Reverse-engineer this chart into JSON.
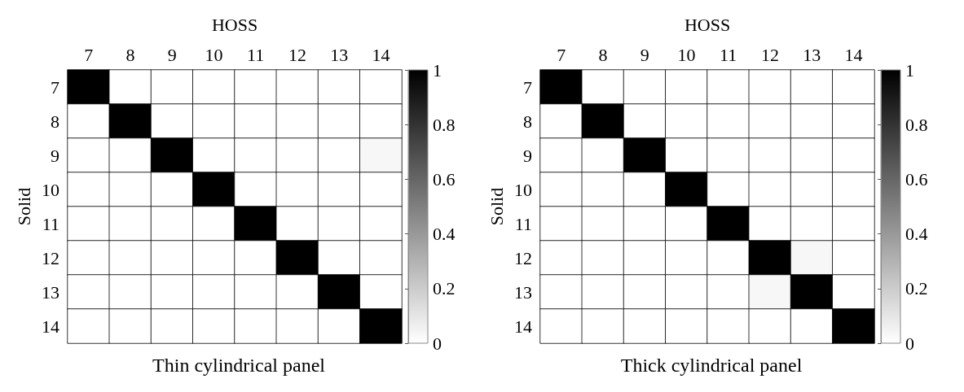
{
  "chart_data": [
    {
      "type": "heatmap",
      "title": "Thin cylindrical panel",
      "xlabel": "HOSS",
      "ylabel": "Solid",
      "categories": [
        "7",
        "8",
        "9",
        "10",
        "11",
        "12",
        "13",
        "14"
      ],
      "y_categories": [
        "7",
        "8",
        "9",
        "10",
        "11",
        "12",
        "13",
        "14"
      ],
      "cells": [
        [
          1,
          0,
          0,
          0,
          0,
          0,
          0,
          0
        ],
        [
          0,
          1,
          0,
          0,
          0,
          0,
          0,
          0
        ],
        [
          0,
          0,
          1,
          0,
          0,
          0,
          0,
          0.03
        ],
        [
          0,
          0,
          0,
          1,
          0,
          0,
          0,
          0
        ],
        [
          0,
          0,
          0,
          0,
          1,
          0,
          0,
          0
        ],
        [
          0,
          0,
          0,
          0,
          0,
          1,
          0,
          0
        ],
        [
          0,
          0,
          0,
          0,
          0,
          0,
          1,
          0
        ],
        [
          0,
          0,
          0,
          0,
          0,
          0,
          0,
          1
        ]
      ],
      "clim": [
        0,
        1
      ],
      "cticks": [
        0,
        0.2,
        0.4,
        0.6,
        0.8,
        1
      ]
    },
    {
      "type": "heatmap",
      "title": "Thick cylindrical panel",
      "xlabel": "HOSS",
      "ylabel": "Solid",
      "categories": [
        "7",
        "8",
        "9",
        "10",
        "11",
        "12",
        "13",
        "14"
      ],
      "y_categories": [
        "7",
        "8",
        "9",
        "10",
        "11",
        "12",
        "13",
        "14"
      ],
      "cells": [
        [
          1,
          0,
          0,
          0,
          0,
          0,
          0,
          0
        ],
        [
          0,
          1,
          0,
          0,
          0,
          0,
          0,
          0
        ],
        [
          0,
          0,
          1,
          0,
          0,
          0,
          0,
          0
        ],
        [
          0,
          0,
          0,
          1,
          0,
          0,
          0,
          0
        ],
        [
          0,
          0,
          0,
          0,
          1,
          0,
          0,
          0
        ],
        [
          0,
          0,
          0,
          0,
          0,
          1,
          0.03,
          0
        ],
        [
          0,
          0,
          0,
          0,
          0,
          0.03,
          1,
          0
        ],
        [
          0,
          0,
          0,
          0,
          0,
          0,
          0,
          1
        ]
      ],
      "clim": [
        0,
        1
      ],
      "cticks": [
        0,
        0.2,
        0.4,
        0.6,
        0.8,
        1
      ]
    }
  ]
}
